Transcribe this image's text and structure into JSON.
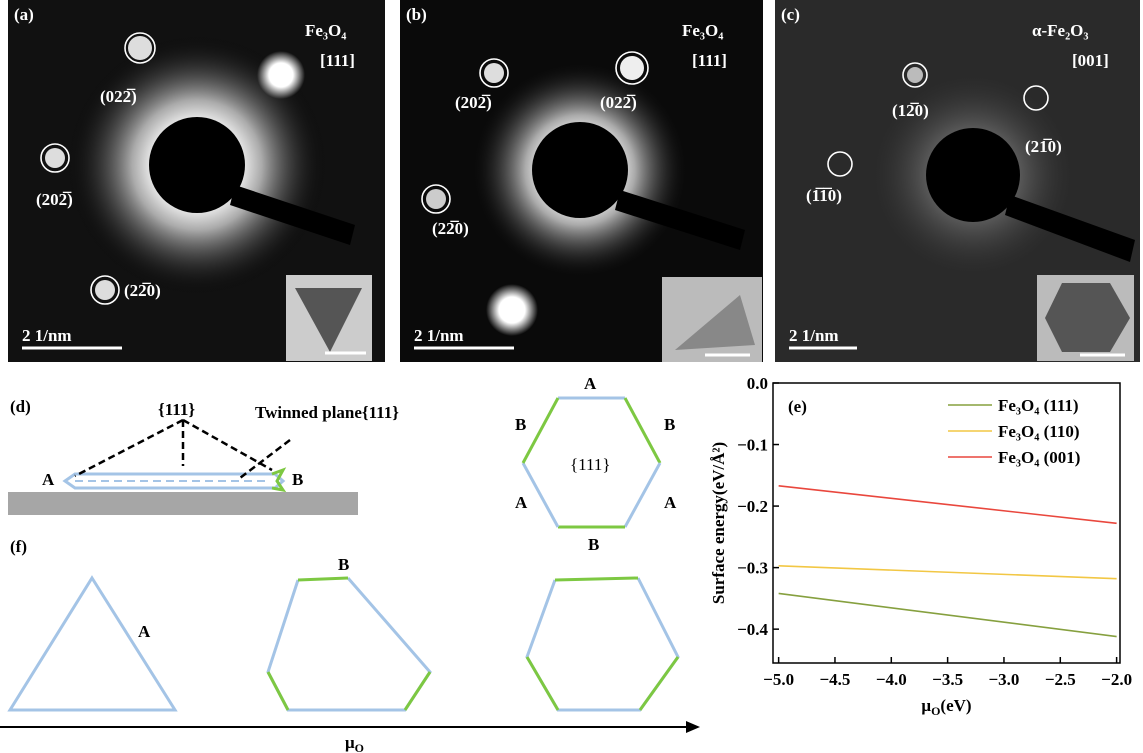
{
  "panels": {
    "a": {
      "label": "(a)",
      "material": "Fe₃O₄",
      "zone": "[111]",
      "spots": [
        "(022̅)",
        "(202̅)",
        "(22̅0)"
      ],
      "scale": "2 1/nm"
    },
    "b": {
      "label": "(b)",
      "material": "Fe₃O₄",
      "zone": "[111]",
      "spots": [
        "(202̅)",
        "(022̅)",
        "(22̅0)"
      ],
      "scale": "2 1/nm"
    },
    "c": {
      "label": "(c)",
      "material": "α-Fe₂O₃",
      "zone": "[001]",
      "spots": [
        "(12̅0)",
        "(21̅0)",
        "(1̅1̅0)"
      ],
      "scale": "2 1/nm"
    }
  },
  "diagram_d": {
    "label": "(d)",
    "facet": "{111}",
    "twin": "Twinned plane{111}",
    "left": "A",
    "right": "B",
    "hexagon": {
      "center": "{111}",
      "edges": [
        "A",
        "B",
        "B",
        "A",
        "A",
        "B"
      ]
    }
  },
  "diagram_f": {
    "label": "(f)",
    "edge_b": "B",
    "edge_a": "A",
    "axis": [
      "μ",
      "O"
    ]
  },
  "chart_data": {
    "type": "line",
    "label": "(e)",
    "x_label": [
      "μ",
      "O",
      "(eV)"
    ],
    "y_label": "Surface energy(eV/Å²)",
    "x": [
      -5,
      -2
    ],
    "series": [
      {
        "name": "Fe₃O₄ (111)",
        "color": "#86a03f",
        "values": [
          -0.342,
          -0.412
        ]
      },
      {
        "name": "Fe₃O₄ (110)",
        "color": "#f2c744",
        "values": [
          -0.297,
          -0.318
        ]
      },
      {
        "name": "Fe₃O₄ (001)",
        "color": "#e9473d",
        "values": [
          -0.167,
          -0.228
        ]
      }
    ],
    "xlim": [
      -5.05,
      -1.97
    ],
    "xticks": [
      {
        "value": -5,
        "label": "−5.0"
      },
      {
        "value": -4.5,
        "label": "−4.5"
      },
      {
        "value": -4,
        "label": "−4.0"
      },
      {
        "value": -3.5,
        "label": "−3.5"
      },
      {
        "value": -3,
        "label": "−3.0"
      },
      {
        "value": -2.5,
        "label": "−2.5"
      },
      {
        "value": -2,
        "label": "−2.0"
      }
    ],
    "ylim": [
      -0.455,
      0
    ],
    "yticks": [
      {
        "value": 0,
        "label": "0.0"
      },
      {
        "value": -0.1,
        "label": "−0.1"
      },
      {
        "value": -0.2,
        "label": "−0.2"
      },
      {
        "value": -0.3,
        "label": "−0.3"
      },
      {
        "value": -0.4,
        "label": "−0.4"
      }
    ],
    "legend": "upper right"
  }
}
